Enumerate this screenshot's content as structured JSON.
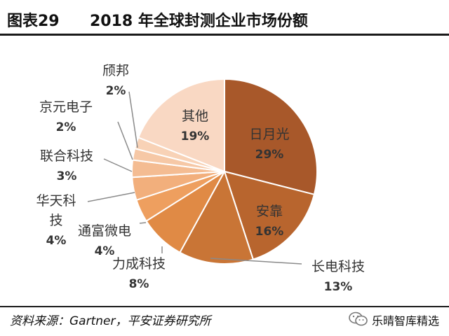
{
  "header": {
    "figure_number": "图表29",
    "title": "2018 年全球封测企业市场份额"
  },
  "chart_data": {
    "type": "pie",
    "title": "2018 年全球封测企业市场份额",
    "unit": "%",
    "slices": [
      {
        "label": "日月光",
        "value": 29,
        "value_label": "29%",
        "color": "#A8582A"
      },
      {
        "label": "安靠",
        "value": 16,
        "value_label": "16%",
        "color": "#B8652E"
      },
      {
        "label": "长电科技",
        "value": 13,
        "value_label": "13%",
        "color": "#C97536"
      },
      {
        "label": "力成科技",
        "value": 8,
        "value_label": "8%",
        "color": "#E08A45"
      },
      {
        "label": "通富微电",
        "value": 4,
        "value_label": "4%",
        "color": "#EE9F5F"
      },
      {
        "label": "华天科技",
        "value": 4,
        "value_label": "4%",
        "color": "#F2AF7C"
      },
      {
        "label": "联合科技",
        "value": 3,
        "value_label": "3%",
        "color": "#F4BC92"
      },
      {
        "label": "京元电子",
        "value": 2,
        "value_label": "2%",
        "color": "#F6C8A6"
      },
      {
        "label": "颀邦",
        "value": 2,
        "value_label": "2%",
        "color": "#F8D2B6"
      },
      {
        "label": "其他",
        "value": 19,
        "value_label": "19%",
        "color": "#F9D8C3"
      }
    ]
  },
  "footer": {
    "source": "资料来源：Gartner，平安证券研究所",
    "wechat_account": "乐晴智库精选"
  },
  "colors": {
    "rule": "#1a1a1a",
    "label_text": "#333333",
    "leader_line": "#8a8a8a",
    "wechat_green": "#8f8f8f"
  }
}
